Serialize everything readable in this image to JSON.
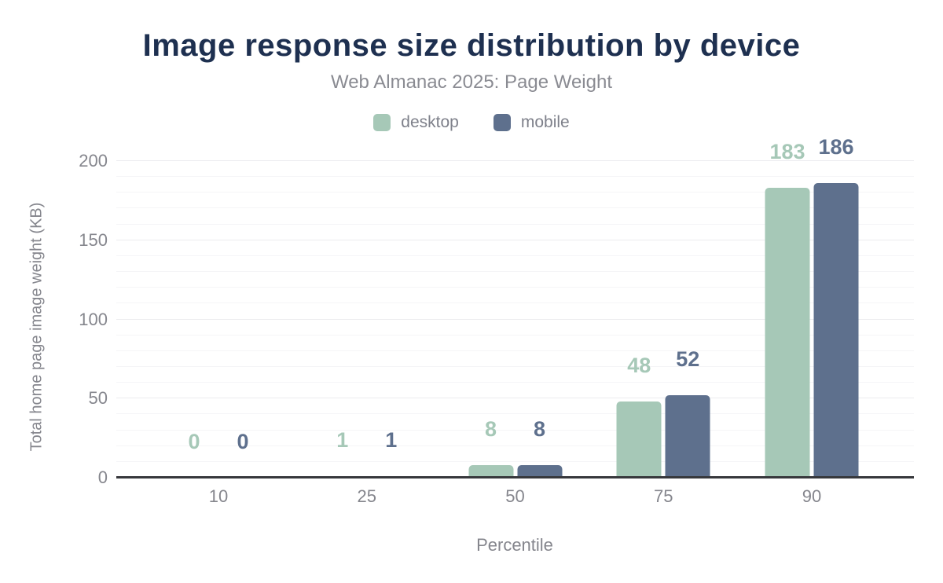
{
  "chart_data": {
    "type": "bar",
    "title": "Image response size distribution by device",
    "subtitle": "Web Almanac 2025: Page Weight",
    "xlabel": "Percentile",
    "ylabel": "Total home page image weight (KB)",
    "categories": [
      "10",
      "25",
      "50",
      "75",
      "90"
    ],
    "series": [
      {
        "name": "desktop",
        "color": "#a6c8b7",
        "values": [
          0,
          1,
          8,
          48,
          183
        ]
      },
      {
        "name": "mobile",
        "color": "#5e708d",
        "values": [
          0,
          1,
          8,
          52,
          186
        ]
      }
    ],
    "ylim": [
      0,
      200
    ],
    "yticks": [
      "0",
      "50",
      "100",
      "150",
      "200"
    ],
    "grid_step": 10,
    "grid_major_step": 50,
    "grid": "on",
    "legend_position": "top",
    "colors": {
      "title": "#1e3050",
      "subtitle": "#8a8b92",
      "axis_text": "#85868d",
      "axis_line": "#37383c",
      "grid_minor": "#f5f5f7",
      "grid_major": "#ececef"
    }
  }
}
